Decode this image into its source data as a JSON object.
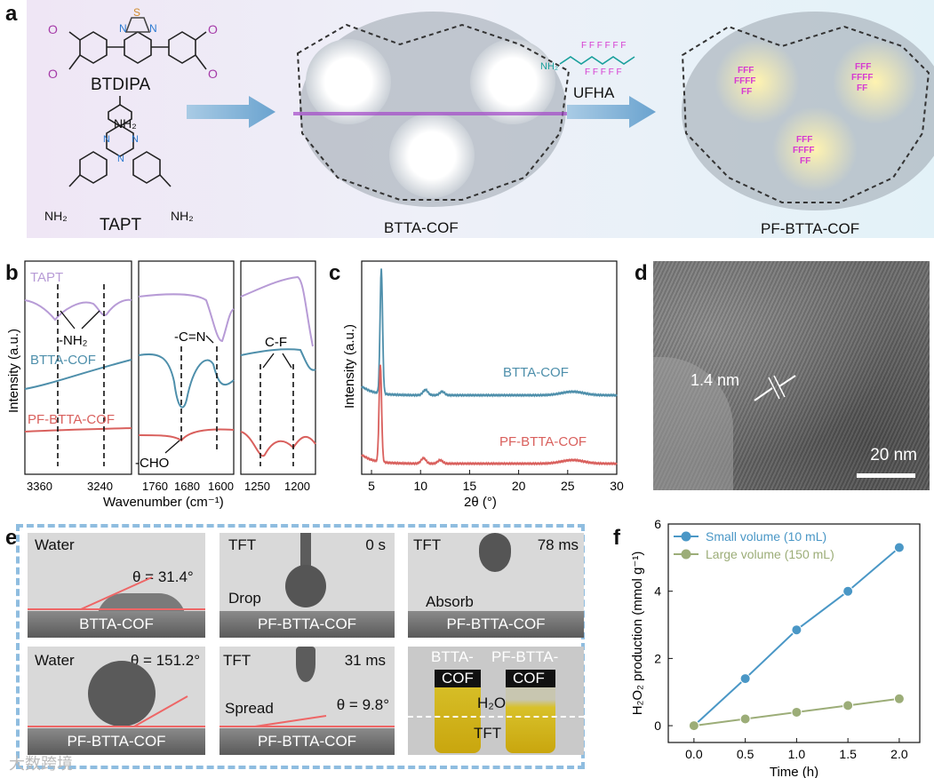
{
  "panel_labels": {
    "a": "a",
    "b": "b",
    "c": "c",
    "d": "d",
    "e": "e",
    "f": "f"
  },
  "panel_a": {
    "btdipa": "BTDIPA",
    "tapt": "TAPT",
    "nh2": "NH₂",
    "cof_name": "BTTA-COF",
    "reagent": "UFHA",
    "product_name": "PF-BTTA-COF"
  },
  "panel_b": {
    "series": [
      "TAPT",
      "BTTA-COF",
      "PF-BTTA-COF"
    ],
    "colors": {
      "TAPT": "#b79bd6",
      "BTTA-COF": "#4e8fab",
      "PF-BTTA-COF": "#d9605d"
    },
    "ylabel": "Intensity (a.u.)",
    "xlabel": "Wavenumber (cm⁻¹)",
    "ticks_1": [
      "3360",
      "3240"
    ],
    "ticks_2": [
      "1760",
      "1680",
      "1600"
    ],
    "ticks_3": [
      "1250",
      "1200"
    ],
    "annotations": {
      "nh2": "-NH₂",
      "cn": "-C=N",
      "cho": "-CHO",
      "cf": "C-F"
    }
  },
  "panel_c": {
    "chart_data": {
      "type": "line",
      "xlabel": "2θ (°)",
      "ylabel": "Intensity (a.u.)",
      "xlim": [
        4,
        30
      ],
      "xticks": [
        "5",
        "10",
        "15",
        "20",
        "25",
        "30"
      ],
      "series": [
        {
          "name": "BTTA-COF",
          "color": "#4e8fab",
          "peaks": [
            6.0,
            10.5,
            12.2,
            25.5
          ]
        },
        {
          "name": "PF-BTTA-COF",
          "color": "#d9605d",
          "peaks": [
            5.9,
            10.3,
            12.0,
            25.5
          ]
        }
      ]
    }
  },
  "panel_d": {
    "lattice": "1.4 nm",
    "scale_bar": "20 nm"
  },
  "panel_e": {
    "p1": {
      "liquid": "Water",
      "angle": "θ = 31.4°",
      "substrate": "BTTA-COF"
    },
    "p2": {
      "liquid": "TFT",
      "time": "0 s",
      "state": "Drop",
      "substrate": "PF-BTTA-COF"
    },
    "p3": {
      "liquid": "TFT",
      "time": "78 ms",
      "state": "Absorb",
      "substrate": "PF-BTTA-COF"
    },
    "p4": {
      "liquid": "Water",
      "angle": "θ = 151.2°",
      "substrate": "PF-BTTA-COF"
    },
    "p5": {
      "liquid": "TFT",
      "time": "31 ms",
      "state": "Spread",
      "angle": "θ = 9.8°",
      "substrate": "PF-BTTA-COF"
    },
    "p6": {
      "vial1_a": "BTTA-",
      "vial1_b": "COF",
      "vial2_a": "PF-BTTA-",
      "vial2_b": "COF",
      "layer_top": "H₂O",
      "layer_bottom": "TFT"
    }
  },
  "watermark": "大数跨境",
  "chart_data": {
    "type": "line",
    "xlabel": "Time (h)",
    "ylabel": "H₂O₂ production (mmol g⁻¹)",
    "xlim": [
      -0.25,
      2.2
    ],
    "ylim": [
      -0.5,
      6
    ],
    "xticks": [
      "0.0",
      "0.5",
      "1.0",
      "1.5",
      "2.0"
    ],
    "yticks": [
      "0",
      "2",
      "4",
      "6"
    ],
    "x": [
      0.0,
      0.5,
      1.0,
      1.5,
      2.0
    ],
    "series": [
      {
        "name": "Small volume (10 mL)",
        "color": "#4a97c6",
        "values": [
          0,
          1.4,
          2.85,
          4.0,
          5.3
        ]
      },
      {
        "name": "Large volume (150 mL)",
        "color": "#9cad78",
        "values": [
          0,
          0.2,
          0.4,
          0.6,
          0.8
        ]
      }
    ]
  }
}
